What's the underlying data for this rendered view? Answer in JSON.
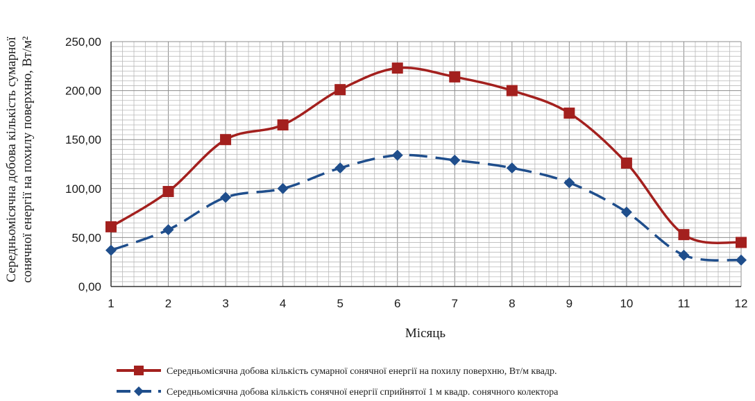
{
  "chart_data": {
    "type": "line",
    "xlabel": "Місяць",
    "ylabel_line1": "Середньомісячна добова кількість сумарної",
    "ylabel_line2": "сонячної енергії на похилу поверхню, Вт/м²",
    "x": [
      1,
      2,
      3,
      4,
      5,
      6,
      7,
      8,
      9,
      10,
      11,
      12
    ],
    "x_tick_labels": [
      "1",
      "2",
      "3",
      "4",
      "5",
      "6",
      "7",
      "8",
      "9",
      "10",
      "11",
      "12"
    ],
    "y_tick_labels": [
      "0,00",
      "50,00",
      "100,00",
      "150,00",
      "200,00",
      "250,00"
    ],
    "ylim": [
      0,
      250
    ],
    "grid": true,
    "legend_position": "bottom",
    "series": [
      {
        "name": "Середньомісячна добова кількість сумарної сонячної енергії на похилу поверхню, Вт/м квадр.",
        "values": [
          61,
          97,
          150,
          165,
          201,
          223,
          214,
          200,
          177,
          126,
          53,
          45
        ],
        "color": "#a3201e",
        "marker": "square",
        "line_style": "solid"
      },
      {
        "name": "Середньомісячна добова кількість сонячної енергії сприйнятої 1 м квадр. сонячного колектора",
        "values": [
          37,
          58,
          91,
          100,
          121,
          134,
          129,
          121,
          106,
          76,
          32,
          27
        ],
        "color": "#1f4e8c",
        "marker": "diamond",
        "line_style": "dashed"
      }
    ]
  }
}
